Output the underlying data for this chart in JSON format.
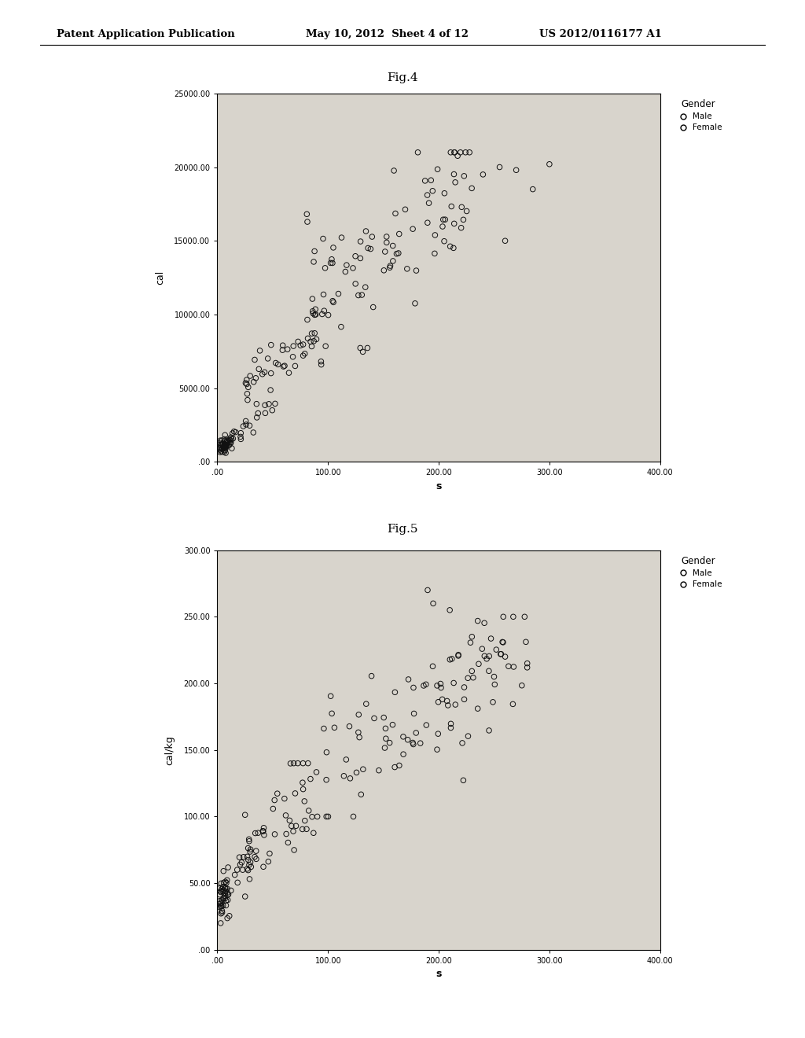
{
  "fig4_title": "Fig.4",
  "fig5_title": "Fig.5",
  "header_left": "Patent Application Publication",
  "header_mid": "May 10, 2012  Sheet 4 of 12",
  "header_right": "US 2012/0116177 A1",
  "fig4_xlabel": "s",
  "fig4_ylabel": "cal",
  "fig4_xlim": [
    0,
    400
  ],
  "fig4_ylim": [
    0,
    25000
  ],
  "fig4_xticks": [
    0,
    100,
    200,
    300,
    400
  ],
  "fig4_xticklabels": [
    ".00",
    "100.00",
    "200.00",
    "300.00",
    "400.00"
  ],
  "fig4_yticks": [
    0,
    5000,
    10000,
    15000,
    20000,
    25000
  ],
  "fig4_yticklabels": [
    ".00",
    "5000.00",
    "10000.00",
    "15000.00",
    "20000.00",
    "25000.00"
  ],
  "fig5_xlabel": "s",
  "fig5_ylabel": "cal/kg",
  "fig5_xlim": [
    0,
    400
  ],
  "fig5_ylim": [
    0,
    300
  ],
  "fig5_xticks": [
    0,
    100,
    200,
    300,
    400
  ],
  "fig5_xticklabels": [
    ".00",
    "100.00",
    "200.00",
    "300.00",
    "400.00"
  ],
  "fig5_yticks": [
    0,
    50,
    100,
    150,
    200,
    250,
    300
  ],
  "fig5_yticklabels": [
    ".00",
    "50.00",
    "100.00",
    "150.00",
    "200.00",
    "250.00",
    "300.00"
  ],
  "legend_title": "Gender",
  "legend_labels": [
    "Male",
    "Female"
  ],
  "background_color": "#ffffff",
  "plot_bg_color": "#d8d4cc",
  "marker_color": "#111111",
  "marker_size": 5,
  "tick_fontsize": 7,
  "label_fontsize": 9
}
